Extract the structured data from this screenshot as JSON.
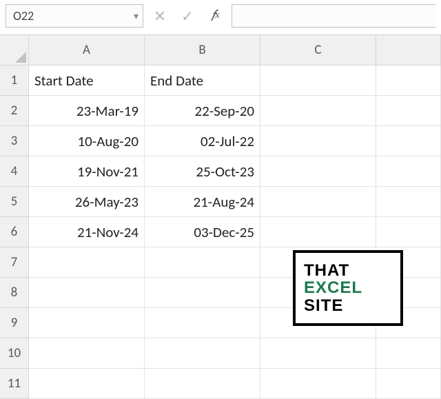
{
  "formula_bar": {
    "cell_ref": "O22",
    "cancel_glyph": "✕",
    "confirm_glyph": "✓",
    "fx_label": "𝑓x",
    "formula_value": ""
  },
  "grid": {
    "column_labels": [
      "A",
      "B",
      "C",
      ""
    ],
    "row_labels": [
      "1",
      "2",
      "3",
      "4",
      "5",
      "6",
      "7",
      "8",
      "9",
      "10",
      "11"
    ],
    "headers": {
      "A": "Start Date",
      "B": "End Date"
    },
    "data": [
      {
        "A": "23-Mar-19",
        "B": "22-Sep-20"
      },
      {
        "A": "10-Aug-20",
        "B": "02-Jul-22"
      },
      {
        "A": "19-Nov-21",
        "B": "25-Oct-23"
      },
      {
        "A": "26-May-23",
        "B": "21-Aug-24"
      },
      {
        "A": "21-Nov-24",
        "B": "03-Dec-25"
      }
    ]
  },
  "logo": {
    "line1": "THAT",
    "line2": "EXCEL",
    "line3": "SITE",
    "border_color": "#000000",
    "accent_color": "#1b7a4c",
    "text_color": "#000000"
  },
  "colors": {
    "header_bg": "#f0f0f0",
    "header_border": "#d6d6d6",
    "cell_border": "#e3e3e3",
    "background": "#ffffff"
  }
}
